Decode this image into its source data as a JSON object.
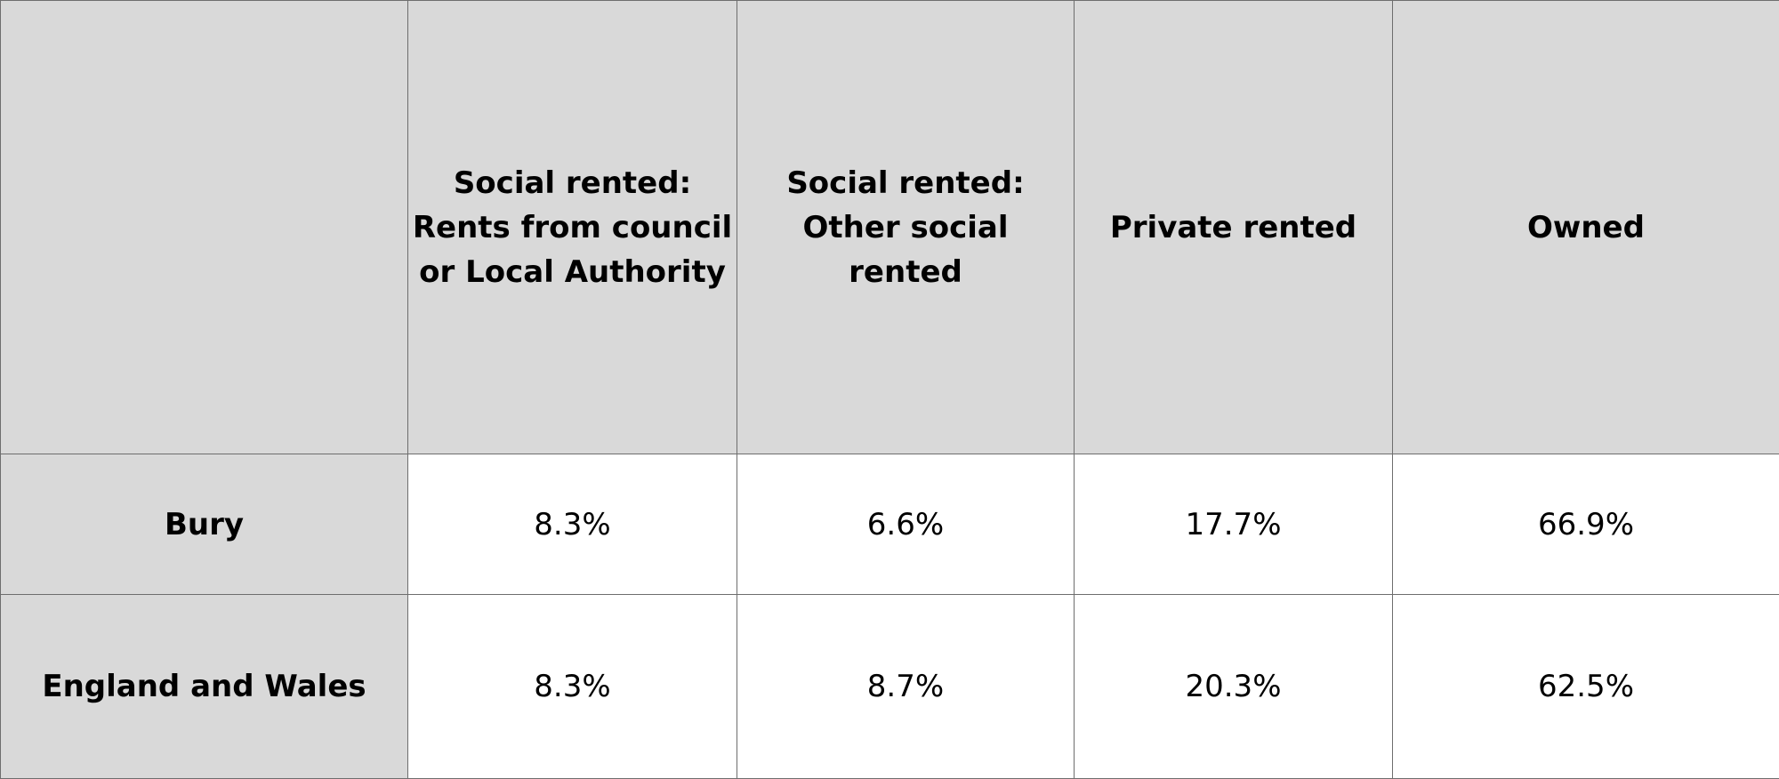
{
  "chart_data": {
    "type": "table",
    "columns": [
      "Social rented:\nRents from council\nor Local Authority",
      "Social rented:\nOther social rented",
      "Private rented",
      "Owned"
    ],
    "rows": [
      {
        "label": "Bury",
        "values": [
          "8.3%",
          "6.6%",
          "17.7%",
          "66.9%"
        ]
      },
      {
        "label": "England and Wales",
        "values": [
          "8.3%",
          "8.7%",
          "20.3%",
          "62.5%"
        ]
      }
    ]
  },
  "colors": {
    "header_fill": "#d9d9d9",
    "cell_fill": "#ffffff",
    "border": "#6e6e6e"
  }
}
